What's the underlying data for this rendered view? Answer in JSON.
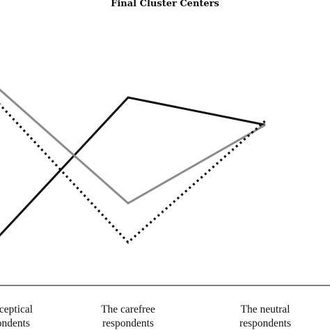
{
  "chart_data": {
    "type": "line",
    "title": "Final Cluster Centers",
    "xlabel": "",
    "ylabel": "",
    "categories": [
      [
        "The sceptical",
        "respondents"
      ],
      [
        "The carefree",
        "respondents"
      ],
      [
        "The neutral",
        "respondents"
      ]
    ],
    "series": [
      {
        "values": [
          -0.9,
          0.8,
          0.45
        ],
        "color": "#111111",
        "style": "solid"
      },
      {
        "values": [
          0.85,
          -0.55,
          0.45
        ],
        "color": "#8c8c8c",
        "style": "solid"
      },
      {
        "values": [
          0.65,
          -1.05,
          0.5
        ],
        "color": "#111111",
        "style": "dotted"
      }
    ],
    "ylim": [
      -1.6,
      1.2
    ],
    "grid": false,
    "legend": "none"
  }
}
